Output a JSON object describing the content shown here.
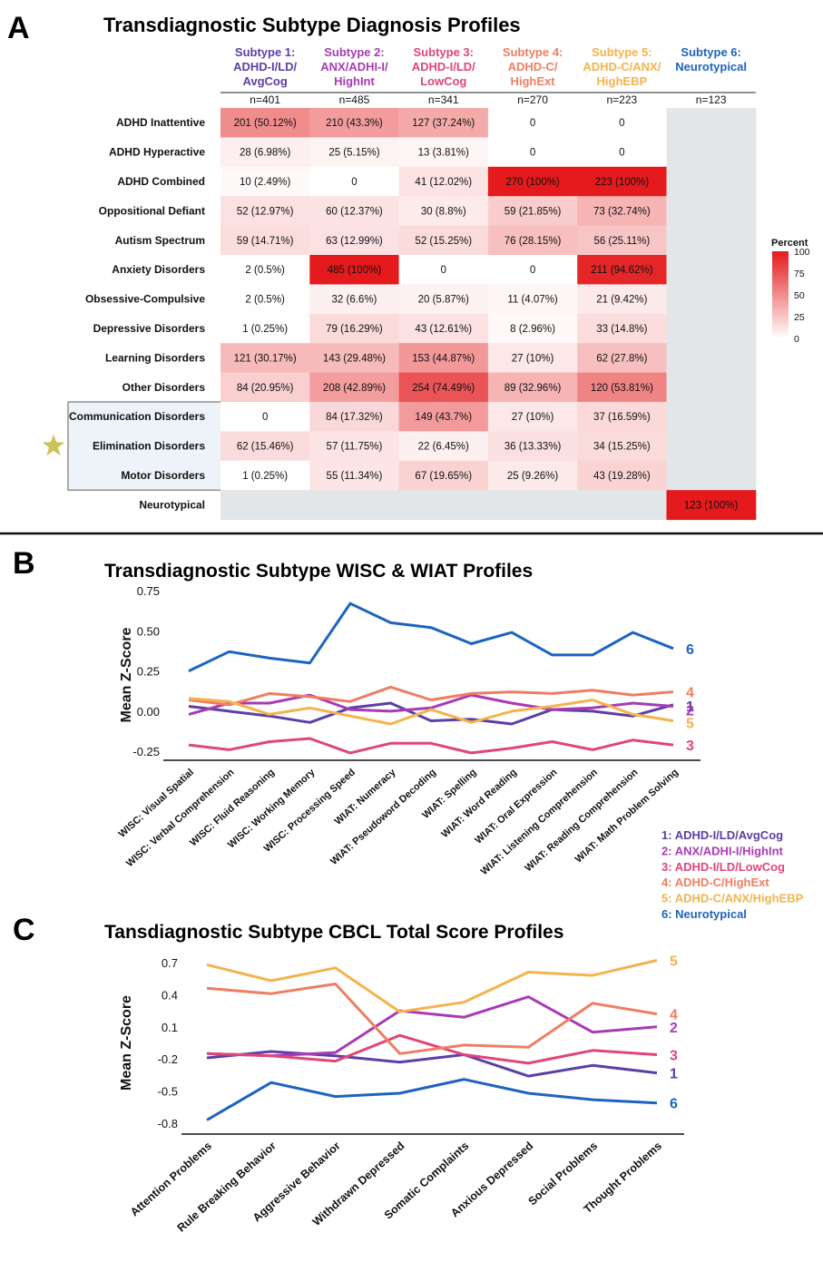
{
  "colors": {
    "s1": "#5b3fa6",
    "s2": "#a83bb4",
    "s3": "#e0457b",
    "s4": "#ee7e63",
    "s5": "#f4b34d",
    "s6": "#1d63c0",
    "grid_grey": "#e3e6e8",
    "heat_high": "#e41a1c",
    "heat_low": "#ffffff"
  },
  "panels": {
    "a": {
      "letter": "A"
    },
    "b": {
      "letter": "B"
    },
    "c": {
      "letter": "C"
    }
  },
  "chart_data": [
    {
      "type": "heatmap",
      "title": "Transdiagnostic Subtype Diagnosis Profiles",
      "columns": [
        {
          "label": "Subtype 1: ADHD-I/LD/ AvgCog",
          "n": "n=401",
          "color": "#5b3fa6"
        },
        {
          "label": "Subtype 2: ANX/ADHI-I/ HighInt",
          "n": "n=485",
          "color": "#a83bb4"
        },
        {
          "label": "Subtype 3: ADHD-I/LD/ LowCog",
          "n": "n=341",
          "color": "#e0457b"
        },
        {
          "label": "Subtype 4: ADHD-C/ HighExt",
          "n": "n=270",
          "color": "#ee7e63"
        },
        {
          "label": "Subtype 5: ADHD-C/ANX/ HighEBP",
          "n": "n=223",
          "color": "#f4b34d"
        },
        {
          "label": "Subtype 6: Neurotypical",
          "n": "n=123",
          "color": "#1d63c0"
        }
      ],
      "rows": [
        {
          "label": "ADHD Inattentive",
          "cells": [
            "201 (50.12%)",
            "210 (43.3%)",
            "127 (37.24%)",
            "0",
            "0",
            null
          ],
          "pct": [
            50.12,
            43.3,
            37.24,
            0,
            0,
            null
          ]
        },
        {
          "label": "ADHD Hyperactive",
          "cells": [
            "28 (6.98%)",
            "25 (5.15%)",
            "13 (3.81%)",
            "0",
            "0",
            null
          ],
          "pct": [
            6.98,
            5.15,
            3.81,
            0,
            0,
            null
          ]
        },
        {
          "label": "ADHD Combined",
          "cells": [
            "10 (2.49%)",
            "0",
            "41 (12.02%)",
            "270 (100%)",
            "223 (100%)",
            null
          ],
          "pct": [
            2.49,
            0,
            12.02,
            100,
            100,
            null
          ]
        },
        {
          "label": "Oppositional Defiant",
          "cells": [
            "52 (12.97%)",
            "60 (12.37%)",
            "30 (8.8%)",
            "59 (21.85%)",
            "73 (32.74%)",
            null
          ],
          "pct": [
            12.97,
            12.37,
            8.8,
            21.85,
            32.74,
            null
          ]
        },
        {
          "label": "Autism Spectrum",
          "cells": [
            "59 (14.71%)",
            "63 (12.99%)",
            "52 (15.25%)",
            "76 (28.15%)",
            "56 (25.11%)",
            null
          ],
          "pct": [
            14.71,
            12.99,
            15.25,
            28.15,
            25.11,
            null
          ]
        },
        {
          "label": "Anxiety Disorders",
          "cells": [
            "2 (0.5%)",
            "485 (100%)",
            "0",
            "0",
            "211 (94.62%)",
            null
          ],
          "pct": [
            0.5,
            100,
            0,
            0,
            94.62,
            null
          ]
        },
        {
          "label": "Obsessive-Compulsive",
          "cells": [
            "2 (0.5%)",
            "32 (6.6%)",
            "20 (5.87%)",
            "11 (4.07%)",
            "21 (9.42%)",
            null
          ],
          "pct": [
            0.5,
            6.6,
            5.87,
            4.07,
            9.42,
            null
          ]
        },
        {
          "label": "Depressive Disorders",
          "cells": [
            "1 (0.25%)",
            "79 (16.29%)",
            "43 (12.61%)",
            "8 (2.96%)",
            "33 (14.8%)",
            null
          ],
          "pct": [
            0.25,
            16.29,
            12.61,
            2.96,
            14.8,
            null
          ]
        },
        {
          "label": "Learning Disorders",
          "cells": [
            "121 (30.17%)",
            "143 (29.48%)",
            "153 (44.87%)",
            "27 (10%)",
            "62 (27.8%)",
            null
          ],
          "pct": [
            30.17,
            29.48,
            44.87,
            10,
            27.8,
            null
          ]
        },
        {
          "label": "Other Disorders",
          "cells": [
            "84 (20.95%)",
            "208 (42.89%)",
            "254 (74.49%)",
            "89 (32.96%)",
            "120 (53.81%)",
            null
          ],
          "pct": [
            20.95,
            42.89,
            74.49,
            32.96,
            53.81,
            null
          ]
        },
        {
          "label": "Communication Disorders",
          "cells": [
            "0",
            "84 (17.32%)",
            "149 (43.7%)",
            "27 (10%)",
            "37 (16.59%)",
            null
          ],
          "pct": [
            0,
            17.32,
            43.7,
            10,
            16.59,
            null
          ]
        },
        {
          "label": "Elimination Disorders",
          "cells": [
            "62 (15.46%)",
            "57 (11.75%)",
            "22 (6.45%)",
            "36 (13.33%)",
            "34 (15.25%)",
            null
          ],
          "pct": [
            15.46,
            11.75,
            6.45,
            13.33,
            15.25,
            null
          ]
        },
        {
          "label": "Motor Disorders",
          "cells": [
            "1 (0.25%)",
            "55 (11.34%)",
            "67 (19.65%)",
            "25 (9.26%)",
            "43 (19.28%)",
            null
          ],
          "pct": [
            0.25,
            11.34,
            19.65,
            9.26,
            19.28,
            null
          ]
        },
        {
          "label": "Neurotypical",
          "cells": [
            null,
            null,
            null,
            null,
            null,
            "123 (100%)"
          ],
          "pct": [
            null,
            null,
            null,
            null,
            null,
            100
          ]
        }
      ],
      "highlighted_rows": [
        "Communication Disorders",
        "Elimination Disorders",
        "Motor Disorders"
      ],
      "starred_row": "Elimination Disorders",
      "legend": {
        "title": "Percent",
        "ticks": [
          100,
          75,
          50,
          25,
          0
        ],
        "placement": "right"
      }
    },
    {
      "type": "line",
      "title": "Transdiagnostic Subtype WISC & WIAT Profiles",
      "ylabel": "Mean Z-Score",
      "ylim": [
        -0.3,
        0.75
      ],
      "yticks": [
        "0.75",
        "0.50",
        "0.25",
        "0.00",
        "-0.25"
      ],
      "yticks_values": [
        0.75,
        0.5,
        0.25,
        0,
        -0.25
      ],
      "categories": [
        "WISC: Visual Spatial",
        "WISC: Verbal Comprehension",
        "WISC: Fluid Reasoning",
        "WISC: Working Memory",
        "WISC: Processing Speed",
        "WIAT: Numeracy",
        "WIAT: Pseudoword Decoding",
        "WIAT: Spelling",
        "WIAT: Word Reading",
        "WIAT: Oral Expression",
        "WIAT: Listening Comprehension",
        "WIAT: Reading Comprehension",
        "WIAT: Math Problem Solving"
      ],
      "series": [
        {
          "name": "1",
          "color": "#5b3fa6",
          "values": [
            0.03,
            0.0,
            -0.03,
            -0.07,
            0.02,
            0.05,
            -0.06,
            -0.05,
            -0.08,
            0.01,
            0.0,
            -0.03,
            0.04
          ]
        },
        {
          "name": "2",
          "color": "#a83bb4",
          "values": [
            -0.02,
            0.05,
            0.05,
            0.1,
            0.01,
            0.0,
            0.02,
            0.1,
            0.05,
            0.01,
            0.02,
            0.05,
            0.03
          ]
        },
        {
          "name": "3",
          "color": "#e0457b",
          "values": [
            -0.21,
            -0.24,
            -0.19,
            -0.17,
            -0.26,
            -0.2,
            -0.2,
            -0.26,
            -0.23,
            -0.19,
            -0.24,
            -0.18,
            -0.21
          ]
        },
        {
          "name": "4",
          "color": "#ee7e63",
          "values": [
            0.07,
            0.04,
            0.11,
            0.09,
            0.06,
            0.15,
            0.07,
            0.11,
            0.12,
            0.11,
            0.13,
            0.1,
            0.12
          ]
        },
        {
          "name": "5",
          "color": "#f4b34d",
          "values": [
            0.08,
            0.06,
            -0.02,
            0.02,
            -0.03,
            -0.08,
            0.01,
            -0.07,
            0.0,
            0.03,
            0.07,
            -0.02,
            -0.06
          ]
        },
        {
          "name": "6",
          "color": "#1d63c0",
          "values": [
            0.25,
            0.37,
            0.33,
            0.3,
            0.67,
            0.55,
            0.52,
            0.42,
            0.49,
            0.35,
            0.35,
            0.49,
            0.39
          ]
        }
      ],
      "legend": [
        {
          "label": "1: ADHD-I/LD/AvgCog",
          "color": "#5b3fa6"
        },
        {
          "label": "2: ANX/ADHI-I/HighInt",
          "color": "#a83bb4"
        },
        {
          "label": "3: ADHD-I/LD/LowCog",
          "color": "#e0457b"
        },
        {
          "label": "4: ADHD-C/HighExt",
          "color": "#ee7e63"
        },
        {
          "label": "5: ADHD-C/ANX/HighEBP",
          "color": "#f4b34d"
        },
        {
          "label": "6: Neurotypical",
          "color": "#1d63c0"
        }
      ]
    },
    {
      "type": "line",
      "title": "Tansdiagnostic Subtype CBCL Total Score Profiles",
      "ylabel": "Mean Z-Score",
      "ylim": [
        -0.85,
        0.75
      ],
      "yticks": [
        "0.7",
        "0.4",
        "0.1",
        "-0.2",
        "-0.5",
        "-0.8"
      ],
      "yticks_values": [
        0.7,
        0.4,
        0.1,
        -0.2,
        -0.5,
        -0.8
      ],
      "categories": [
        "Attention Problems",
        "Rule Breaking Behavior",
        "Aggressive Behavior",
        "Withdrawn Depressed",
        "Somatic Complaints",
        "Anxious Depressed",
        "Social Problems",
        "Thought Problems"
      ],
      "series": [
        {
          "name": "1",
          "color": "#5b3fa6",
          "values": [
            -0.19,
            -0.13,
            -0.17,
            -0.23,
            -0.16,
            -0.36,
            -0.26,
            -0.33
          ]
        },
        {
          "name": "2",
          "color": "#a83bb4",
          "values": [
            -0.15,
            -0.17,
            -0.14,
            0.25,
            0.19,
            0.38,
            0.05,
            0.1
          ]
        },
        {
          "name": "3",
          "color": "#e0457b",
          "values": [
            -0.15,
            -0.17,
            -0.22,
            0.02,
            -0.16,
            -0.24,
            -0.12,
            -0.16
          ]
        },
        {
          "name": "4",
          "color": "#ee7e63",
          "values": [
            0.46,
            0.41,
            0.5,
            -0.15,
            -0.07,
            -0.09,
            0.32,
            0.22
          ]
        },
        {
          "name": "5",
          "color": "#f4b34d",
          "values": [
            0.68,
            0.53,
            0.65,
            0.24,
            0.33,
            0.61,
            0.58,
            0.72
          ]
        },
        {
          "name": "6",
          "color": "#1d63c0",
          "values": [
            -0.77,
            -0.42,
            -0.55,
            -0.52,
            -0.39,
            -0.52,
            -0.58,
            -0.61
          ]
        }
      ]
    }
  ]
}
